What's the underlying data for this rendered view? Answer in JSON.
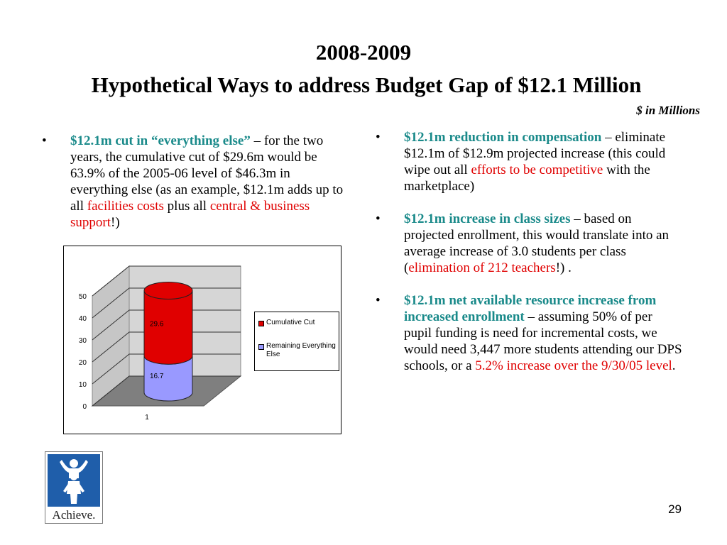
{
  "slide": {
    "title_line1": "2008-2009",
    "title_line2": "Hypothetical Ways to address Budget Gap of $12.1 Million",
    "subtitle": "$ in Millions",
    "page_number": "29",
    "logo_text": "Achieve."
  },
  "left_bullet": {
    "bullet": "•",
    "lead": "$12.1m cut in “everything else”",
    "text1": " – for the two years, the cumulative cut of $29.6m would be 63.9% of the 2005-06 level of $46.3m in everything else (as an example, $12.1m adds up to all ",
    "red1": "facilities costs",
    "text2": " plus all ",
    "red2": "central & business support",
    "text3": "!)"
  },
  "right_bullets": [
    {
      "bullet": "•",
      "lead": "$12.1m reduction in compensation",
      "text1": " – eliminate $12.1m of $12.9m projected increase (this could wipe out all ",
      "red1": "efforts to be competitive",
      "text2": " with the marketplace)"
    },
    {
      "bullet": "•",
      "lead": "$12.1m increase in class sizes",
      "text1": " – based on projected enrollment, this would translate into an average increase of 3.0 students per class (",
      "red1": "elimination of 212 teachers",
      "text2": "!) ."
    },
    {
      "bullet": "•",
      "lead": "$12.1m net available resource increase from increased enrollment",
      "text1": " – assuming 50% of per pupil funding is need for incremental costs, we would need 3,447 more students attending our DPS schools, or a ",
      "red1": "5.2% increase over the 9/30/05 level",
      "text2": "."
    }
  ],
  "chart_data": {
    "type": "bar",
    "stacked": true,
    "three_d": true,
    "categories": [
      "1"
    ],
    "series": [
      {
        "name": "Remaining Everything Else",
        "values": [
          16.7
        ],
        "color": "#9999ff"
      },
      {
        "name": "Cumulative Cut",
        "values": [
          29.6
        ],
        "color": "#e00000"
      }
    ],
    "data_labels": [
      "16.7",
      "29.6"
    ],
    "y_ticks": [
      "0",
      "10",
      "20",
      "30",
      "40",
      "50"
    ],
    "ylim": [
      0,
      50
    ],
    "grid": true,
    "legend_position": "right"
  },
  "legend": {
    "cumulative": "Cumulative Cut",
    "remaining": "Remaining Everything Else"
  },
  "colors": {
    "teal": "#1a8a8a",
    "red": "#e00000",
    "logo_blue": "#1f5eaa"
  }
}
